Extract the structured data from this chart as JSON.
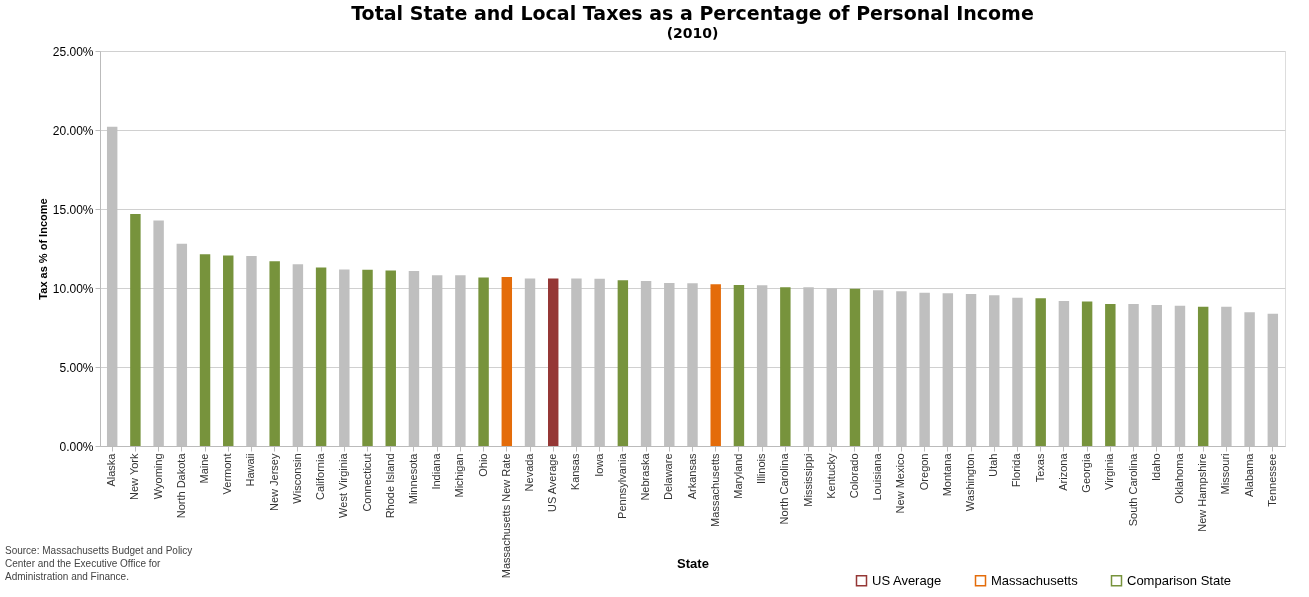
{
  "chart_data": {
    "type": "bar",
    "title": "Total State and Local Taxes as a Percentage of Personal Income",
    "subtitle": "(2010)",
    "xlabel": "State",
    "ylabel": "Tax as % of Income",
    "categories": [
      "Alaska",
      "New York",
      "Wyoming",
      "North Dakota",
      "Maine",
      "Vermont",
      "Hawaii",
      "New Jersey",
      "Wisconsin",
      "California",
      "West Virginia",
      "Connecticut",
      "Rhode Island",
      "Minnesota",
      "Indiana",
      "Michigan",
      "Ohio",
      "Massachusetts New Rate",
      "Nevada",
      "US Average",
      "Kansas",
      "Iowa",
      "Pennsylvania",
      "Nebraska",
      "Delaware",
      "Arkansas",
      "Massachusetts",
      "Maryland",
      "Illinois",
      "North Carolina",
      "Mississippi",
      "Kentucky",
      "Colorado",
      "Louisiana",
      "New Mexico",
      "Oregon",
      "Montana",
      "Washington",
      "Utah",
      "Florida",
      "Texas",
      "Arizona",
      "Georgia",
      "Virginia",
      "South Carolina",
      "Idaho",
      "Oklahoma",
      "New Hampshire",
      "Missouri",
      "Alabama",
      "Tennessee"
    ],
    "series": [
      {
        "color": "#bfbfbf",
        "values": [
          20.2,
          null,
          14.27,
          12.8,
          null,
          null,
          12.03,
          null,
          11.5,
          null,
          11.17,
          null,
          null,
          11.08,
          10.8,
          10.8,
          null,
          null,
          10.6,
          null,
          10.6,
          10.58,
          null,
          10.45,
          10.32,
          10.3,
          null,
          null,
          10.17,
          null,
          10.04,
          9.98,
          null,
          9.85,
          9.8,
          9.7,
          9.66,
          9.62,
          9.54,
          9.39,
          null,
          9.18,
          null,
          null,
          8.99,
          8.92,
          8.88,
          null,
          8.82,
          8.46,
          8.37
        ]
      },
      {
        "name": "US Average",
        "color": "#953735",
        "values": [
          null,
          null,
          null,
          null,
          null,
          null,
          null,
          null,
          null,
          null,
          null,
          null,
          null,
          null,
          null,
          null,
          null,
          null,
          null,
          10.6,
          null,
          null,
          null,
          null,
          null,
          null,
          null,
          null,
          null,
          null,
          null,
          null,
          null,
          null,
          null,
          null,
          null,
          null,
          null,
          null,
          null,
          null,
          null,
          null,
          null,
          null,
          null,
          null,
          null,
          null,
          null
        ]
      },
      {
        "name": "Massachusetts",
        "color": "#e46c0a",
        "values": [
          null,
          null,
          null,
          null,
          null,
          null,
          null,
          null,
          null,
          null,
          null,
          null,
          null,
          null,
          null,
          null,
          null,
          10.7,
          null,
          null,
          null,
          null,
          null,
          null,
          null,
          null,
          10.23,
          null,
          null,
          null,
          null,
          null,
          null,
          null,
          null,
          null,
          null,
          null,
          null,
          null,
          null,
          null,
          null,
          null,
          null,
          null,
          null,
          null,
          null,
          null,
          null
        ]
      },
      {
        "name": "Comparison State",
        "color": "#77933c",
        "values": [
          null,
          14.68,
          null,
          null,
          12.13,
          12.05,
          null,
          11.7,
          null,
          11.3,
          null,
          11.15,
          11.1,
          null,
          null,
          null,
          10.67,
          null,
          null,
          null,
          null,
          null,
          10.49,
          null,
          null,
          null,
          null,
          10.19,
          null,
          10.04,
          null,
          null,
          9.96,
          null,
          null,
          null,
          null,
          null,
          null,
          null,
          9.35,
          null,
          9.14,
          8.99,
          null,
          null,
          null,
          8.82,
          null,
          null,
          null
        ]
      }
    ],
    "ylim": [
      0,
      25
    ],
    "yticks": [
      {
        "value": 0,
        "label": "0.00%"
      },
      {
        "value": 5,
        "label": "5.00%"
      },
      {
        "value": 10,
        "label": "10.00%"
      },
      {
        "value": 15,
        "label": "15.00%"
      },
      {
        "value": 20,
        "label": "20.00%"
      },
      {
        "value": 25,
        "label": "25.00%"
      }
    ],
    "grid": "y",
    "legend": "bottom right",
    "annotations": [
      "Source: Massachusetts Budget and Policy Center and the Executive Office for Administration and Finance."
    ]
  }
}
